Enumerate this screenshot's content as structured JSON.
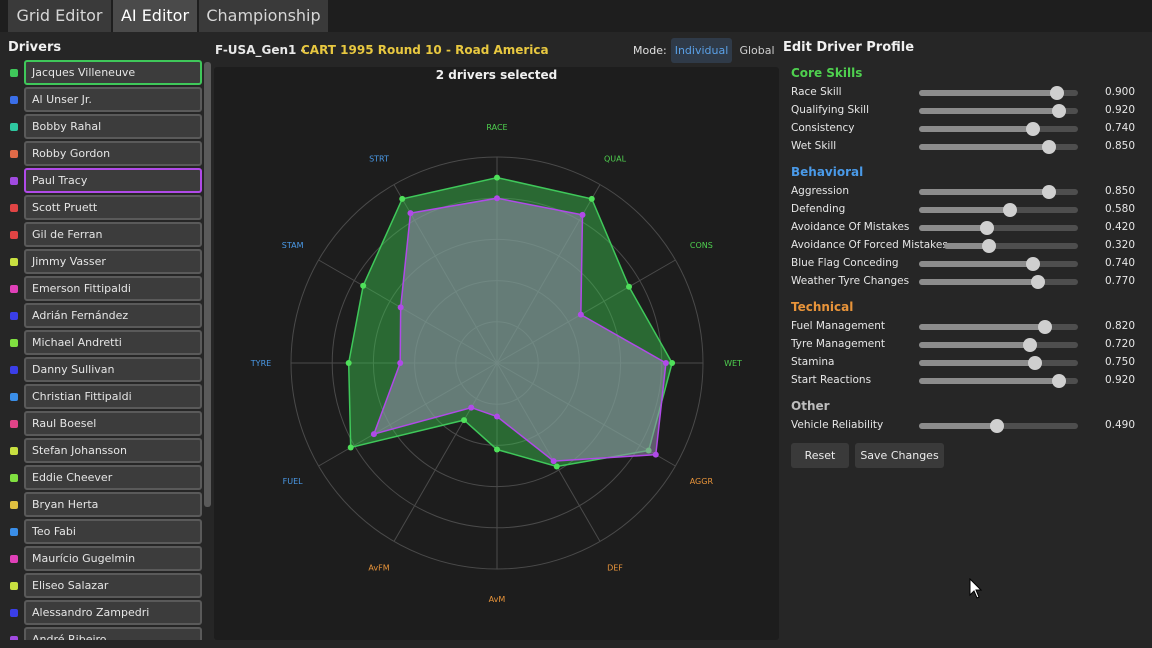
{
  "tabs": [
    {
      "label": "Grid Editor"
    },
    {
      "label": "AI Editor"
    },
    {
      "label": "Championship"
    }
  ],
  "sidebar": {
    "title": "Drivers",
    "drivers": [
      {
        "name": "Jacques Villeneuve",
        "color": "#3fc85a",
        "selected": "green"
      },
      {
        "name": "Al Unser Jr.",
        "color": "#3a6ee8",
        "selected": ""
      },
      {
        "name": "Bobby Rahal",
        "color": "#2ec8a0",
        "selected": ""
      },
      {
        "name": "Robby Gordon",
        "color": "#e06a48",
        "selected": ""
      },
      {
        "name": "Paul Tracy",
        "color": "#a04ae0",
        "selected": "purple"
      },
      {
        "name": "Scott Pruett",
        "color": "#e04444",
        "selected": ""
      },
      {
        "name": "Gil de Ferran",
        "color": "#e04444",
        "selected": ""
      },
      {
        "name": "Jimmy Vasser",
        "color": "#c8e040",
        "selected": ""
      },
      {
        "name": "Emerson Fittipaldi",
        "color": "#e040b8",
        "selected": ""
      },
      {
        "name": "Adrián Fernández",
        "color": "#3a3ee8",
        "selected": ""
      },
      {
        "name": "Michael Andretti",
        "color": "#80e040",
        "selected": ""
      },
      {
        "name": "Danny Sullivan",
        "color": "#3a3ee8",
        "selected": ""
      },
      {
        "name": "Christian Fittipaldi",
        "color": "#3a8ee8",
        "selected": ""
      },
      {
        "name": "Raul Boesel",
        "color": "#e04488",
        "selected": ""
      },
      {
        "name": "Stefan Johansson",
        "color": "#c8e040",
        "selected": ""
      },
      {
        "name": "Eddie Cheever",
        "color": "#80e040",
        "selected": ""
      },
      {
        "name": "Bryan Herta",
        "color": "#e0c040",
        "selected": ""
      },
      {
        "name": "Teo Fabi",
        "color": "#3a8ee8",
        "selected": ""
      },
      {
        "name": "Maurício Gugelmin",
        "color": "#e040b8",
        "selected": ""
      },
      {
        "name": "Eliseo Salazar",
        "color": "#c8e040",
        "selected": ""
      },
      {
        "name": "Alessandro Zampedri",
        "color": "#3a3ee8",
        "selected": ""
      },
      {
        "name": "André Ribeiro",
        "color": "#a04ae0",
        "selected": ""
      }
    ]
  },
  "header": {
    "prefix": "F-USA_Gen1 -",
    "event": "CART 1995 Round 10 - Road America",
    "mode_label": "Mode:",
    "mode_individual": "Individual",
    "mode_global": "Global"
  },
  "chart": {
    "selection_text": "2 drivers selected",
    "axes": [
      {
        "label": "RACE",
        "color": "#4fd04f"
      },
      {
        "label": "QUAL",
        "color": "#4fd04f"
      },
      {
        "label": "CONS",
        "color": "#4fd04f"
      },
      {
        "label": "WET",
        "color": "#4fd04f"
      },
      {
        "label": "AGGR",
        "color": "#e8943a"
      },
      {
        "label": "DEF",
        "color": "#e8943a"
      },
      {
        "label": "AvM",
        "color": "#e8943a"
      },
      {
        "label": "AvFM",
        "color": "#e8943a"
      },
      {
        "label": "FUEL",
        "color": "#4a9ae8"
      },
      {
        "label": "TYRE",
        "color": "#4a9ae8"
      },
      {
        "label": "STAM",
        "color": "#4a9ae8"
      },
      {
        "label": "STRT",
        "color": "#4a9ae8"
      }
    ]
  },
  "chart_data": {
    "type": "radar",
    "title": "2 drivers selected",
    "categories": [
      "RACE",
      "QUAL",
      "CONS",
      "WET",
      "AGGR",
      "DEF",
      "AvM",
      "AvFM",
      "FUEL",
      "TYRE",
      "STAM",
      "STRT"
    ],
    "ylim": [
      0,
      1
    ],
    "grid": true,
    "series": [
      {
        "name": "Jacques Villeneuve",
        "color": "#3fc85a",
        "values": [
          0.9,
          0.92,
          0.74,
          0.85,
          0.85,
          0.58,
          0.42,
          0.32,
          0.82,
          0.72,
          0.75,
          0.92
        ]
      },
      {
        "name": "Paul Tracy",
        "color": "#b04ae8",
        "values": [
          0.8,
          0.83,
          0.47,
          0.82,
          0.89,
          0.55,
          0.26,
          0.25,
          0.69,
          0.47,
          0.54,
          0.84
        ]
      }
    ]
  },
  "profile": {
    "title": "Edit Driver Profile",
    "sections": [
      {
        "title": "Core Skills",
        "color": "#4fd04f",
        "stats": [
          {
            "label": "Race Skill",
            "value": 0.9,
            "display": "0.900"
          },
          {
            "label": "Qualifying Skill",
            "value": 0.92,
            "display": "0.920"
          },
          {
            "label": "Consistency",
            "value": 0.74,
            "display": "0.740"
          },
          {
            "label": "Wet Skill",
            "value": 0.85,
            "display": "0.850"
          }
        ]
      },
      {
        "title": "Behavioral",
        "color": "#4a9ae8",
        "stats": [
          {
            "label": "Aggression",
            "value": 0.85,
            "display": "0.850"
          },
          {
            "label": "Defending",
            "value": 0.58,
            "display": "0.580"
          },
          {
            "label": "Avoidance Of Mistakes",
            "value": 0.42,
            "display": "0.420"
          },
          {
            "label": "Avoidance Of Forced Mistakes",
            "value": 0.32,
            "display": "0.320"
          },
          {
            "label": "Blue Flag Conceding",
            "value": 0.74,
            "display": "0.740"
          },
          {
            "label": "Weather Tyre Changes",
            "value": 0.77,
            "display": "0.770"
          }
        ]
      },
      {
        "title": "Technical",
        "color": "#e8943a",
        "stats": [
          {
            "label": "Fuel Management",
            "value": 0.82,
            "display": "0.820"
          },
          {
            "label": "Tyre Management",
            "value": 0.72,
            "display": "0.720"
          },
          {
            "label": "Stamina",
            "value": 0.75,
            "display": "0.750"
          },
          {
            "label": "Start Reactions",
            "value": 0.92,
            "display": "0.920"
          }
        ]
      },
      {
        "title": "Other",
        "color": "#bdbdbd",
        "stats": [
          {
            "label": "Vehicle Reliability",
            "value": 0.49,
            "display": "0.490"
          }
        ]
      }
    ],
    "reset_label": "Reset",
    "save_label": "Save Changes"
  }
}
